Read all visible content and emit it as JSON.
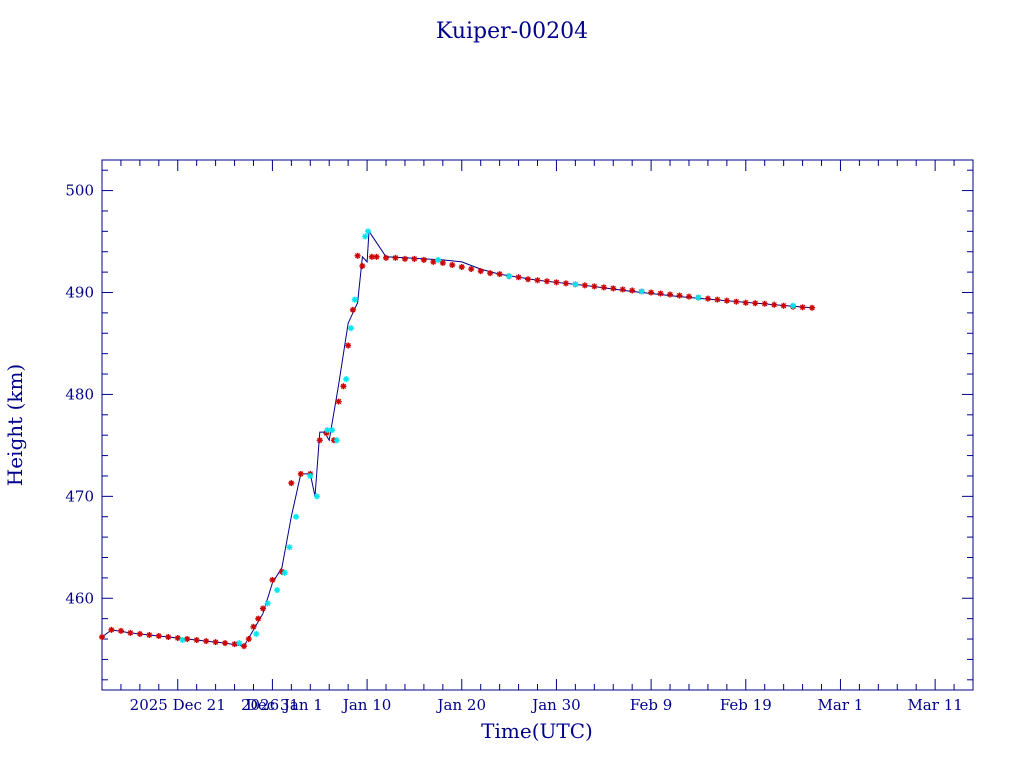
{
  "chart_data": {
    "type": "scatter",
    "title": "Kuiper-00204",
    "xlabel": "Time(UTC)",
    "ylabel": "Height (km)",
    "xlim": [
      "2025-12-13",
      "2026-03-15"
    ],
    "ylim": [
      451,
      503
    ],
    "yticks": [
      460,
      470,
      480,
      490,
      500
    ],
    "xticks": [
      {
        "date": "2025-12-21",
        "label": "2025 Dec 21"
      },
      {
        "date": "2025-12-31",
        "label": "Dec 31"
      },
      {
        "date": "2026-01-01",
        "label": "2026 Jan  1"
      },
      {
        "date": "2026-01-10",
        "label": "Jan 10"
      },
      {
        "date": "2026-01-20",
        "label": "Jan 20"
      },
      {
        "date": "2026-01-30",
        "label": "Jan 30"
      },
      {
        "date": "2026-02-09",
        "label": "Feb  9"
      },
      {
        "date": "2026-02-19",
        "label": "Feb 19"
      },
      {
        "date": "2026-03-01",
        "label": "Mar  1"
      },
      {
        "date": "2026-03-11",
        "label": "Mar 11"
      }
    ],
    "grid": false,
    "colors": {
      "axes": "#00008b",
      "line": "#00008b",
      "series_a": "#cc0000",
      "series_b": "#00e5ee"
    },
    "line": {
      "x": [
        "2025-12-13",
        "2025-12-14",
        "2025-12-16",
        "2025-12-18",
        "2025-12-20",
        "2025-12-22",
        "2025-12-24",
        "2025-12-26",
        "2025-12-28",
        "2025-12-30",
        "2025-12-31",
        "2026-01-01",
        "2026-01-02",
        "2026-01-03",
        "2026-01-04",
        "2026-01-04.5",
        "2026-01-05",
        "2026-01-05.5",
        "2026-01-06",
        "2026-01-07",
        "2026-01-08",
        "2026-01-09",
        "2026-01-09.5",
        "2026-01-10",
        "2026-01-10.2",
        "2026-01-12",
        "2026-01-14",
        "2026-01-16",
        "2026-01-18",
        "2026-01-20",
        "2026-01-22",
        "2026-01-24",
        "2026-01-28",
        "2026-02-02",
        "2026-02-07",
        "2026-02-12",
        "2026-02-17",
        "2026-02-22",
        "2026-02-26"
      ],
      "y": [
        456.2,
        456.9,
        456.6,
        456.4,
        456.2,
        456.0,
        455.8,
        455.6,
        455.3,
        458.5,
        461.5,
        463.0,
        468.0,
        472.2,
        472.2,
        470.0,
        476.3,
        476.3,
        475.5,
        481.0,
        487.0,
        489.0,
        493.5,
        493.0,
        496.0,
        493.5,
        493.4,
        493.3,
        493.2,
        493.0,
        492.3,
        491.8,
        491.2,
        490.7,
        490.1,
        489.6,
        489.2,
        488.8,
        488.5
      ]
    },
    "series": [
      {
        "color": "#cc0000",
        "marker": "asterisk",
        "x": [
          "2025-12-13",
          "2025-12-14",
          "2025-12-15",
          "2025-12-16",
          "2025-12-17",
          "2025-12-18",
          "2025-12-19",
          "2025-12-20",
          "2025-12-21",
          "2025-12-22",
          "2025-12-23",
          "2025-12-24",
          "2025-12-25",
          "2025-12-26",
          "2025-12-27",
          "2025-12-28",
          "2025-12-28.5",
          "2025-12-29",
          "2025-12-29.5",
          "2025-12-30",
          "2025-12-31",
          "2026-01-01",
          "2026-01-02",
          "2026-01-03",
          "2026-01-04",
          "2026-01-05",
          "2026-01-05.7",
          "2026-01-06.5",
          "2026-01-07",
          "2026-01-07.5",
          "2026-01-08",
          "2026-01-08.5",
          "2026-01-09",
          "2026-01-09.5",
          "2026-01-10.5",
          "2026-01-11",
          "2026-01-12",
          "2026-01-13",
          "2026-01-14",
          "2026-01-15",
          "2026-01-16",
          "2026-01-17",
          "2026-01-18",
          "2026-01-19",
          "2026-01-20",
          "2026-01-21",
          "2026-01-22",
          "2026-01-23",
          "2026-01-24",
          "2026-01-25",
          "2026-01-26",
          "2026-01-27",
          "2026-01-28",
          "2026-01-29",
          "2026-01-30",
          "2026-01-31",
          "2026-02-01",
          "2026-02-02",
          "2026-02-03",
          "2026-02-04",
          "2026-02-05",
          "2026-02-06",
          "2026-02-07",
          "2026-02-08",
          "2026-02-09",
          "2026-02-10",
          "2026-02-11",
          "2026-02-12",
          "2026-02-13",
          "2026-02-14",
          "2026-02-15",
          "2026-02-16",
          "2026-02-17",
          "2026-02-18",
          "2026-02-19",
          "2026-02-20",
          "2026-02-21",
          "2026-02-22",
          "2026-02-23",
          "2026-02-24",
          "2026-02-25",
          "2026-02-26"
        ],
        "y": [
          456.2,
          456.9,
          456.8,
          456.6,
          456.5,
          456.4,
          456.3,
          456.2,
          456.1,
          456.0,
          455.9,
          455.8,
          455.7,
          455.6,
          455.5,
          455.3,
          456.0,
          457.2,
          458.0,
          459.0,
          461.8,
          462.6,
          471.3,
          472.2,
          472.2,
          475.5,
          476.2,
          475.5,
          479.3,
          480.8,
          484.8,
          488.3,
          493.6,
          492.6,
          493.5,
          493.5,
          493.4,
          493.4,
          493.3,
          493.3,
          493.2,
          493.0,
          492.9,
          492.7,
          492.5,
          492.3,
          492.1,
          491.9,
          491.8,
          491.6,
          491.5,
          491.3,
          491.2,
          491.1,
          491.0,
          490.9,
          490.8,
          490.7,
          490.6,
          490.5,
          490.4,
          490.3,
          490.2,
          490.1,
          490.0,
          489.9,
          489.8,
          489.7,
          489.6,
          489.5,
          489.4,
          489.3,
          489.2,
          489.1,
          489.0,
          488.95,
          488.9,
          488.8,
          488.7,
          488.6,
          488.55,
          488.5
        ]
      },
      {
        "color": "#00e5ee",
        "marker": "asterisk",
        "x": [
          "2025-12-21.5",
          "2025-12-27.5",
          "2025-12-29.3",
          "2025-12-30.5",
          "2025-12-31.5",
          "2026-01-01.3",
          "2026-01-01.8",
          "2026-01-02.5",
          "2026-01-04",
          "2026-01-04.7",
          "2026-01-05.8",
          "2026-01-06.3",
          "2026-01-06.8",
          "2026-01-07.8",
          "2026-01-08.3",
          "2026-01-08.7",
          "2026-01-09.8",
          "2026-01-10.1",
          "2026-01-17.5",
          "2026-01-25",
          "2026-02-01",
          "2026-02-08",
          "2026-02-14",
          "2026-02-24"
        ],
        "y": [
          455.9,
          455.6,
          456.5,
          459.5,
          460.8,
          462.5,
          465.0,
          468.0,
          472.0,
          470.0,
          476.5,
          476.5,
          475.5,
          481.5,
          486.5,
          489.3,
          495.5,
          496.0,
          493.2,
          491.6,
          490.8,
          490.1,
          489.5,
          488.7
        ]
      }
    ]
  }
}
